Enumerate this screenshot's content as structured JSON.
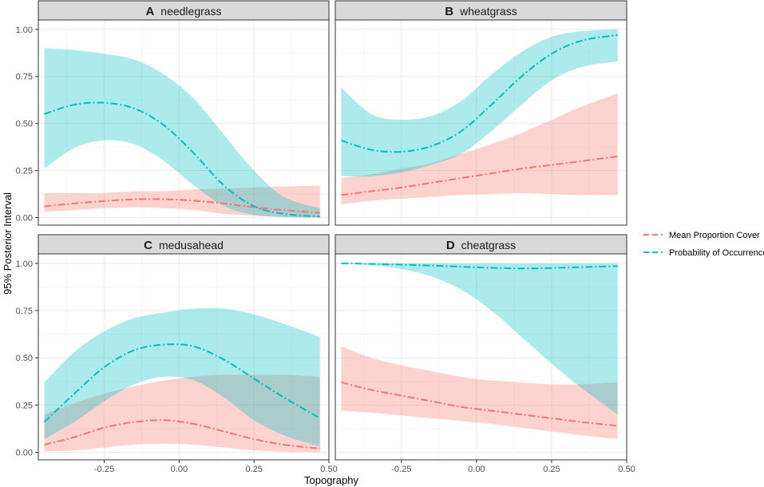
{
  "chart_data": {
    "type": "line",
    "xlabel": "Topography",
    "ylabel": "95% Posterior Interval",
    "xlim": [
      -0.47,
      0.5
    ],
    "ylim": [
      -0.04,
      1.05
    ],
    "x_ticks": [
      -0.25,
      0.0,
      0.25,
      0.5
    ],
    "x_tick_labels": [
      "-0.25",
      "0.00",
      "0.25",
      "0.50"
    ],
    "y_ticks": [
      0.0,
      0.25,
      0.5,
      0.75,
      1.0
    ],
    "y_tick_labels": [
      "0.00",
      "0.25",
      "0.50",
      "0.75",
      "1.00"
    ],
    "grid": true,
    "legend": {
      "placement": "right",
      "entries": [
        {
          "label": "Mean Proportion Cover",
          "color": "#F8766D"
        },
        {
          "label": "Probability of Occurrence",
          "color": "#00BFC4"
        }
      ]
    },
    "x": [
      -0.45,
      -0.35,
      -0.25,
      -0.15,
      -0.05,
      0.05,
      0.15,
      0.25,
      0.35,
      0.47
    ],
    "panels": [
      {
        "letter": "A",
        "name": "needlegrass",
        "series": [
          {
            "name": "Mean Proportion Cover",
            "mean": [
              0.06,
              0.075,
              0.088,
              0.097,
              0.098,
              0.09,
              0.075,
              0.055,
              0.04,
              0.025
            ],
            "lower": [
              0.03,
              0.04,
              0.05,
              0.055,
              0.05,
              0.04,
              0.02,
              0.01,
              0.003,
              0.0
            ],
            "upper": [
              0.13,
              0.13,
              0.13,
              0.14,
              0.14,
              0.15,
              0.155,
              0.16,
              0.165,
              0.17
            ]
          },
          {
            "name": "Probability of Occurrence",
            "mean": [
              0.55,
              0.6,
              0.61,
              0.58,
              0.49,
              0.34,
              0.17,
              0.06,
              0.02,
              0.005
            ],
            "lower": [
              0.26,
              0.37,
              0.41,
              0.39,
              0.3,
              0.17,
              0.06,
              0.015,
              0.003,
              0.0
            ],
            "upper": [
              0.9,
              0.89,
              0.87,
              0.84,
              0.76,
              0.63,
              0.44,
              0.25,
              0.11,
              0.05
            ]
          }
        ]
      },
      {
        "letter": "B",
        "name": "wheatgrass",
        "series": [
          {
            "name": "Mean Proportion Cover",
            "mean": [
              0.12,
              0.14,
              0.16,
              0.185,
              0.21,
              0.235,
              0.26,
              0.28,
              0.3,
              0.325
            ],
            "lower": [
              0.07,
              0.09,
              0.1,
              0.11,
              0.12,
              0.125,
              0.13,
              0.125,
              0.12,
              0.12
            ],
            "upper": [
              0.21,
              0.23,
              0.26,
              0.29,
              0.34,
              0.39,
              0.45,
              0.52,
              0.59,
              0.66
            ]
          },
          {
            "name": "Probability of Occurrence",
            "mean": [
              0.41,
              0.36,
              0.35,
              0.38,
              0.46,
              0.6,
              0.75,
              0.87,
              0.94,
              0.97
            ],
            "lower": [
              0.22,
              0.22,
              0.24,
              0.28,
              0.34,
              0.46,
              0.6,
              0.73,
              0.8,
              0.83
            ],
            "upper": [
              0.69,
              0.55,
              0.52,
              0.54,
              0.62,
              0.76,
              0.88,
              0.96,
              0.99,
              1.0
            ]
          }
        ]
      },
      {
        "letter": "C",
        "name": "medusahead",
        "series": [
          {
            "name": "Mean Proportion Cover",
            "mean": [
              0.04,
              0.08,
              0.13,
              0.16,
              0.17,
              0.15,
              0.11,
              0.07,
              0.04,
              0.02
            ],
            "lower": [
              0.005,
              0.01,
              0.025,
              0.04,
              0.045,
              0.04,
              0.025,
              0.01,
              0.003,
              0.0
            ],
            "upper": [
              0.2,
              0.26,
              0.31,
              0.35,
              0.38,
              0.4,
              0.41,
              0.41,
              0.41,
              0.4
            ]
          },
          {
            "name": "Probability of Occurrence",
            "mean": [
              0.16,
              0.31,
              0.45,
              0.54,
              0.57,
              0.56,
              0.49,
              0.39,
              0.29,
              0.18
            ],
            "lower": [
              0.07,
              0.16,
              0.27,
              0.36,
              0.4,
              0.38,
              0.29,
              0.17,
              0.09,
              0.03
            ],
            "upper": [
              0.37,
              0.53,
              0.64,
              0.71,
              0.74,
              0.76,
              0.76,
              0.73,
              0.68,
              0.61
            ]
          }
        ]
      },
      {
        "letter": "D",
        "name": "cheatgrass",
        "series": [
          {
            "name": "Mean Proportion Cover",
            "mean": [
              0.37,
              0.33,
              0.3,
              0.27,
              0.24,
              0.22,
              0.2,
              0.18,
              0.16,
              0.14
            ],
            "lower": [
              0.22,
              0.21,
              0.195,
              0.18,
              0.165,
              0.15,
              0.13,
              0.11,
              0.09,
              0.07
            ],
            "upper": [
              0.56,
              0.5,
              0.46,
              0.43,
              0.4,
              0.38,
              0.37,
              0.36,
              0.36,
              0.37
            ]
          },
          {
            "name": "Probability of Occurrence",
            "mean": [
              1.0,
              0.997,
              0.993,
              0.988,
              0.982,
              0.976,
              0.973,
              0.975,
              0.98,
              0.985
            ],
            "lower": [
              1.0,
              0.99,
              0.97,
              0.93,
              0.86,
              0.75,
              0.61,
              0.47,
              0.34,
              0.2
            ],
            "upper": [
              1.0,
              1.0,
              1.0,
              1.0,
              1.0,
              1.0,
              1.0,
              1.0,
              1.0,
              1.0
            ]
          }
        ]
      }
    ]
  }
}
